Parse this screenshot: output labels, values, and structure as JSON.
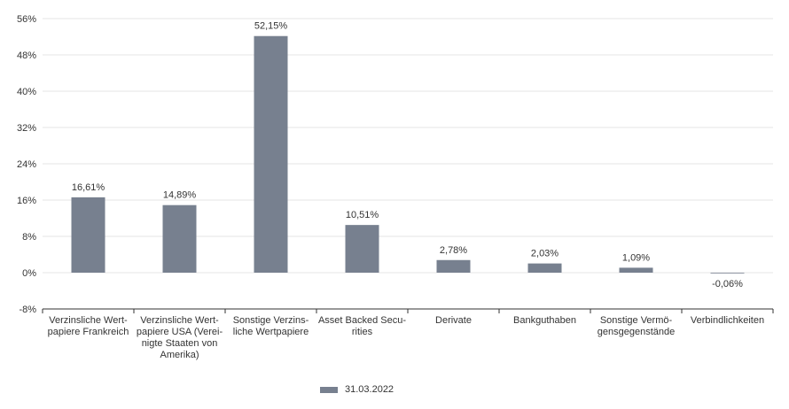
{
  "chart_data": {
    "type": "bar",
    "categories": [
      "Verzinsliche Wert-\npapiere Frankreich",
      "Verzinsliche Wert-\npapiere USA (Verei-\nnigte Staaten von\nAmerika)",
      "Sonstige Verzins-\nliche Wertpapiere",
      "Asset Backed Secu-\nrities",
      "Derivate",
      "Bankguthaben",
      "Sonstige Vermö-\ngensgegenstände",
      "Verbindlichkeiten"
    ],
    "series": [
      {
        "name": "31.03.2022",
        "values": [
          16.61,
          14.89,
          52.15,
          10.51,
          2.78,
          2.03,
          1.09,
          -0.06
        ]
      }
    ],
    "data_labels": [
      "16,61%",
      "14,89%",
      "52,15%",
      "10,51%",
      "2,78%",
      "2,03%",
      "1,09%",
      "-0,06%"
    ],
    "y_ticks": [
      -8,
      0,
      8,
      16,
      24,
      32,
      40,
      48,
      56
    ],
    "y_tick_labels": [
      "-8%",
      "0%",
      "8%",
      "16%",
      "24%",
      "32%",
      "40%",
      "48%",
      "56%"
    ],
    "ylim": [
      -8,
      56
    ],
    "title": "",
    "xlabel": "",
    "ylabel": "",
    "grid": true,
    "legend_position": "bottom-center",
    "colors": {
      "bar": "#77808f",
      "grid": "#e6e6e6",
      "axis": "#333333"
    }
  },
  "legend": {
    "label": "31.03.2022"
  }
}
